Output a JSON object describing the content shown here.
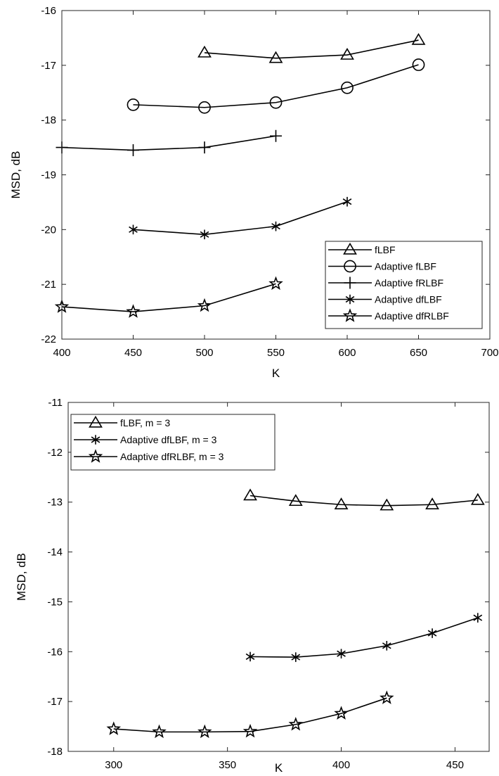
{
  "chart_data": [
    {
      "type": "line",
      "xlabel": "K",
      "ylabel": "MSD, dB",
      "xlim": [
        400,
        700
      ],
      "ylim": [
        -22,
        -16
      ],
      "xticks": [
        400,
        450,
        500,
        550,
        600,
        650,
        700
      ],
      "yticks": [
        -22,
        -21,
        -20,
        -19,
        -18,
        -17,
        -16
      ],
      "xtick_labels": [
        "400",
        "450",
        "500",
        "550",
        "600",
        "650",
        "700"
      ],
      "ytick_labels": [
        "-22",
        "-21",
        "-20",
        "-19",
        "-18",
        "-17",
        "-16"
      ],
      "grid": false,
      "legend_position": "bottom-right",
      "series": [
        {
          "name": "fLBF",
          "marker": "triangle",
          "x": [
            500,
            550,
            600,
            650
          ],
          "y": [
            -16.77,
            -16.87,
            -16.81,
            -16.54
          ]
        },
        {
          "name": "Adaptive fLBF",
          "marker": "circle",
          "x": [
            450,
            500,
            550,
            600,
            650
          ],
          "y": [
            -17.72,
            -17.77,
            -17.68,
            -17.41,
            -16.99
          ]
        },
        {
          "name": "Adaptive fRLBF",
          "marker": "plus",
          "x": [
            400,
            450,
            500,
            550
          ],
          "y": [
            -18.5,
            -18.55,
            -18.5,
            -18.29
          ]
        },
        {
          "name": "Adaptive dfLBF",
          "marker": "asterisk",
          "x": [
            450,
            500,
            550,
            600
          ],
          "y": [
            -20.0,
            -20.09,
            -19.94,
            -19.49
          ]
        },
        {
          "name": "Adaptive dfRLBF",
          "marker": "star",
          "x": [
            400,
            450,
            500,
            550
          ],
          "y": [
            -21.41,
            -21.5,
            -21.39,
            -20.99
          ]
        }
      ]
    },
    {
      "type": "line",
      "xlabel": "K",
      "ylabel": "MSD, dB",
      "xlim": [
        280,
        465
      ],
      "ylim": [
        -18,
        -11
      ],
      "xticks": [
        300,
        350,
        400,
        450
      ],
      "yticks": [
        -18,
        -17,
        -16,
        -15,
        -14,
        -13,
        -12,
        -11
      ],
      "xtick_labels": [
        "300",
        "350",
        "400",
        "450"
      ],
      "ytick_labels": [
        "-18",
        "-17",
        "-16",
        "-15",
        "-14",
        "-13",
        "-12",
        "-11"
      ],
      "grid": false,
      "legend_position": "top-left",
      "series": [
        {
          "name": "fLBF, m = 3",
          "marker": "triangle",
          "x": [
            360,
            380,
            400,
            420,
            440,
            460
          ],
          "y": [
            -12.87,
            -12.98,
            -13.05,
            -13.07,
            -13.05,
            -12.96
          ]
        },
        {
          "name": "Adaptive dfLBF, m = 3",
          "marker": "asterisk",
          "x": [
            360,
            380,
            400,
            420,
            440,
            460
          ],
          "y": [
            -16.1,
            -16.11,
            -16.04,
            -15.88,
            -15.63,
            -15.32
          ]
        },
        {
          "name": "Adaptive dfRLBF, m = 3",
          "marker": "star",
          "x": [
            300,
            320,
            340,
            360,
            380,
            400,
            420
          ],
          "y": [
            -17.55,
            -17.61,
            -17.61,
            -17.6,
            -17.46,
            -17.24,
            -16.93
          ]
        }
      ]
    }
  ]
}
